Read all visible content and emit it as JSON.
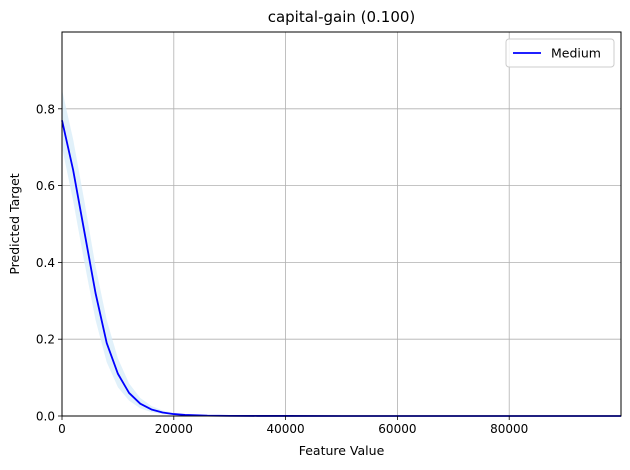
{
  "chart_data": {
    "type": "line",
    "title": "capital-gain (0.100)",
    "xlabel": "Feature Value",
    "ylabel": "Predicted Target",
    "xlim": [
      0,
      99999
    ],
    "ylim": [
      0,
      1.0
    ],
    "xticks": [
      0,
      20000,
      40000,
      60000,
      80000
    ],
    "xtick_labels": [
      "0",
      "20000",
      "40000",
      "60000",
      "80000"
    ],
    "yticks": [
      0.0,
      0.2,
      0.4,
      0.6,
      0.8
    ],
    "ytick_labels": [
      "0.0",
      "0.2",
      "0.4",
      "0.6",
      "0.8"
    ],
    "grid": true,
    "legend_position": "top-right",
    "series": [
      {
        "name": "Medium",
        "color": "#0000ff",
        "band_color": "#d7ecf8",
        "x": [
          0,
          2000,
          4000,
          6000,
          8000,
          10000,
          12000,
          14000,
          16000,
          18000,
          20000,
          22000,
          24000,
          26000,
          28000,
          30000,
          35000,
          40000,
          50000,
          60000,
          70000,
          80000,
          90000,
          99999
        ],
        "y": [
          0.77,
          0.64,
          0.48,
          0.32,
          0.19,
          0.11,
          0.06,
          0.032,
          0.017,
          0.009,
          0.005,
          0.003,
          0.002,
          0.001,
          0.0007,
          0.0004,
          0.0002,
          0.0001,
          0.0,
          0.0,
          0.0,
          0.0,
          0.0,
          0.0
        ],
        "lower": [
          0.7,
          0.56,
          0.4,
          0.25,
          0.14,
          0.075,
          0.04,
          0.02,
          0.01,
          0.005,
          0.003,
          0.0015,
          0.001,
          0.0005,
          0.0003,
          0.0002,
          0.0001,
          0.0,
          0.0,
          0.0,
          0.0,
          0.0,
          0.0,
          0.0
        ],
        "upper": [
          0.85,
          0.72,
          0.56,
          0.39,
          0.25,
          0.15,
          0.085,
          0.047,
          0.026,
          0.014,
          0.008,
          0.005,
          0.003,
          0.002,
          0.001,
          0.0007,
          0.0003,
          0.0002,
          0.0,
          0.0,
          0.0,
          0.0,
          0.0,
          0.0
        ]
      }
    ]
  }
}
